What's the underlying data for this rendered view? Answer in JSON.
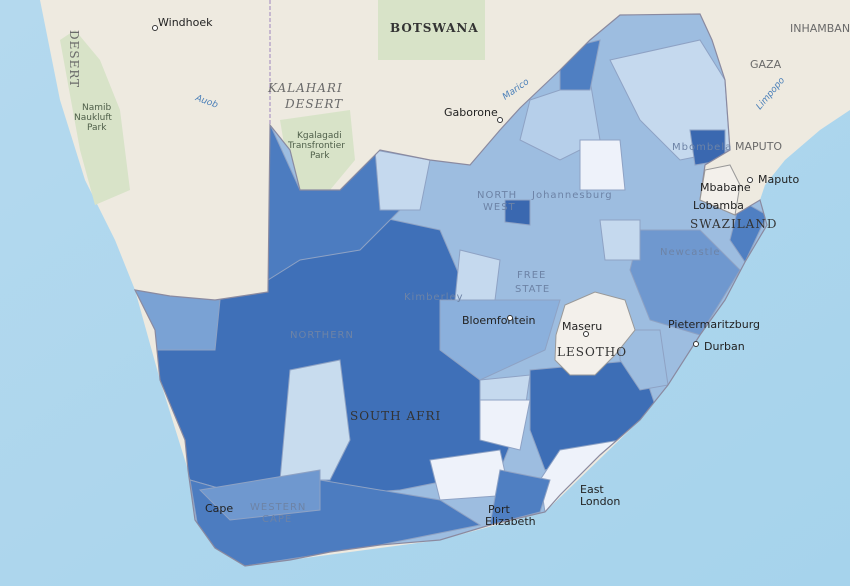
{
  "map": {
    "labels": [
      {
        "text": "Windhoek"
      },
      {
        "text": "BOTSWANA"
      },
      {
        "text": "KALAHARI"
      },
      {
        "text": "DESERT"
      },
      {
        "text": "Kgalagadi"
      },
      {
        "text": "Transfrontier"
      },
      {
        "text": "Park"
      },
      {
        "text": "Namib"
      },
      {
        "text": "Naukluft"
      },
      {
        "text": "Park"
      },
      {
        "text": "DESERT"
      },
      {
        "text": "Gaborone"
      },
      {
        "text": "Marico"
      },
      {
        "text": "Auob"
      },
      {
        "text": "INHAMBANE"
      },
      {
        "text": "GAZA"
      },
      {
        "text": "Limpopo"
      },
      {
        "text": "MAPUTO"
      },
      {
        "text": "Maputo"
      },
      {
        "text": "Mbabane"
      },
      {
        "text": "Lobamba"
      },
      {
        "text": "SWAZILAND"
      },
      {
        "text": "Mbombela"
      },
      {
        "text": "NORTH"
      },
      {
        "text": "WEST"
      },
      {
        "text": "Johannesburg"
      },
      {
        "text": "Newcastle"
      },
      {
        "text": "Kimberley"
      },
      {
        "text": "FREE"
      },
      {
        "text": "STATE"
      },
      {
        "text": "Bloemfontein"
      },
      {
        "text": "Maseru"
      },
      {
        "text": "LESOTHO"
      },
      {
        "text": "Pietermaritzburg"
      },
      {
        "text": "Durban"
      },
      {
        "text": "NORTHERN"
      },
      {
        "text": "SOUTH AFRI"
      },
      {
        "text": "East"
      },
      {
        "text": "London"
      },
      {
        "text": "Port"
      },
      {
        "text": "Elizabeth"
      },
      {
        "text": "WESTERN"
      },
      {
        "text": "CAPE"
      },
      {
        "text": "Cape"
      }
    ]
  }
}
